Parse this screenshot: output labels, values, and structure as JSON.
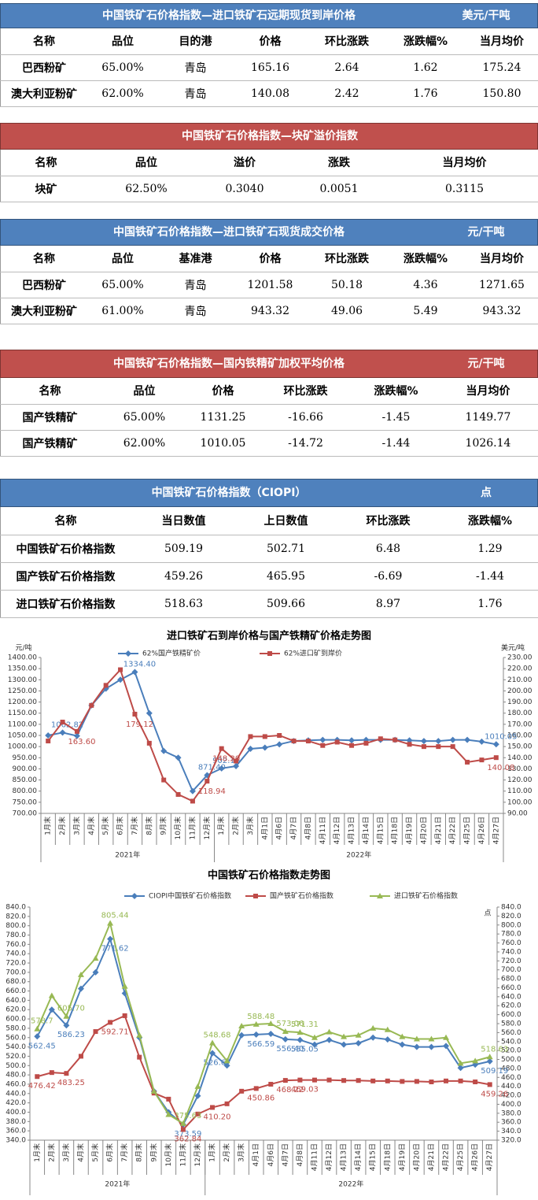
{
  "tables": [
    {
      "title": "中国铁矿石价格指数—进口铁矿石远期现货到岸价格",
      "unit": "美元/干吨",
      "header_color": "#4f81bd",
      "columns": [
        "名称",
        "品位",
        "目的港",
        "价格",
        "环比涨跌",
        "涨跌幅%",
        "当月均价"
      ],
      "rows": [
        [
          "巴西粉矿",
          "65.00%",
          "青岛",
          "165.16",
          "2.64",
          "1.62",
          "175.24"
        ],
        [
          "澳大利亚粉矿",
          "62.00%",
          "青岛",
          "140.08",
          "2.42",
          "1.76",
          "150.80"
        ]
      ]
    },
    {
      "title": "中国铁矿石价格指数—块矿溢价指数",
      "header_color": "#c0504d",
      "columns": [
        "名称",
        "品位",
        "溢价",
        "涨跌",
        "当月均价"
      ],
      "rows": [
        [
          "块矿",
          "62.50%",
          "0.3040",
          "0.0051",
          "0.3115"
        ]
      ]
    },
    {
      "title": "中国铁矿石价格指数—进口铁矿石现货成交价格",
      "unit": "元/干吨",
      "header_color": "#4f81bd",
      "columns": [
        "名称",
        "品位",
        "基准港",
        "价格",
        "环比涨跌",
        "涨跌幅%",
        "当月均价"
      ],
      "rows": [
        [
          "巴西粉矿",
          "65.00%",
          "青岛",
          "1201.58",
          "50.18",
          "4.36",
          "1271.65"
        ],
        [
          "澳大利亚粉矿",
          "61.00%",
          "青岛",
          "943.32",
          "49.06",
          "5.49",
          "943.32"
        ]
      ]
    },
    {
      "title": "中国铁矿石价格指数—国内铁精矿加权平均价格",
      "unit": "元/干吨",
      "header_color": "#c0504d",
      "columns": [
        "名称",
        "品位",
        "价格",
        "环比涨跌",
        "涨跌幅%",
        "当月均价"
      ],
      "rows": [
        [
          "国产铁精矿",
          "65.00%",
          "1131.25",
          "-16.66",
          "-1.45",
          "1149.77"
        ],
        [
          "国产铁精矿",
          "62.00%",
          "1010.05",
          "-14.72",
          "-1.44",
          "1026.14"
        ]
      ]
    },
    {
      "title": "中国铁矿石价格指数（CIOPI）",
      "unit": "点",
      "header_color": "#4f81bd",
      "columns": [
        "名称",
        "当日数值",
        "上日数值",
        "环比涨跌",
        "涨跌幅%"
      ],
      "rows": [
        [
          "中国铁矿石价格指数",
          "509.19",
          "502.71",
          "6.48",
          "1.29"
        ],
        [
          "国产铁矿石价格指数",
          "459.26",
          "465.95",
          "-6.69",
          "-1.44"
        ],
        [
          "进口铁矿石价格指数",
          "518.63",
          "509.66",
          "8.97",
          "1.76"
        ]
      ]
    }
  ],
  "chart_data": [
    {
      "type": "line",
      "title": "进口铁矿石到岸价格与国产铁精矿价格走势图",
      "y_label": "元/吨",
      "y2_label": "美元/吨",
      "legend": "top",
      "categories": [
        "1月末",
        "2月末",
        "3月末",
        "4月末",
        "5月末",
        "6月末",
        "7月末",
        "8月末",
        "9月末",
        "10月末",
        "11月末",
        "12月末",
        "1月末",
        "2月末",
        "3月末",
        "4月1日",
        "4月6日",
        "4月7日",
        "4月8日",
        "4月11日",
        "4月12日",
        "4月13日",
        "4月14日",
        "4月15日",
        "4月18日",
        "4月19日",
        "4月20日",
        "4月21日",
        "4月22日",
        "4月25日",
        "4月26日",
        "4月27日"
      ],
      "x_groups": [
        "2021年",
        "2022年"
      ],
      "series": [
        {
          "name": "62%国产铁精矿价",
          "color": "#4a7ebb",
          "marker": "diamond",
          "values": [
            1050,
            1062.82,
            1048,
            1185,
            1260,
            1300,
            1334.4,
            1150,
            980,
            950,
            800,
            871.4,
            902.16,
            912,
            990,
            995,
            1010,
            1025,
            1028,
            1030,
            1030,
            1028,
            1030,
            1030,
            1030,
            1028,
            1025,
            1025,
            1030,
            1030,
            1022,
            1010.05
          ],
          "value_labels": [
            null,
            "1062.82",
            null,
            null,
            null,
            null,
            "1334.40",
            null,
            null,
            null,
            null,
            "871.40",
            "902.16",
            null,
            null,
            null,
            null,
            null,
            null,
            null,
            null,
            null,
            null,
            null,
            null,
            null,
            null,
            null,
            null,
            null,
            null,
            "1010.05"
          ]
        },
        {
          "name": "62%进口矿到岸价",
          "color": "#be4b48",
          "marker": "square",
          "axis": "y2",
          "values": [
            155,
            172,
            163.6,
            187,
            205,
            219,
            179.12,
            153,
            120,
            107,
            101,
            118.94,
            148.2,
            137,
            159,
            159,
            160,
            155,
            155,
            151,
            154,
            151,
            153,
            157,
            156,
            152,
            150,
            150,
            150,
            136,
            138,
            140.08
          ],
          "value_labels": [
            null,
            null,
            "163.60",
            null,
            null,
            null,
            "179.12",
            null,
            null,
            null,
            null,
            "118.94",
            "148.20",
            null,
            null,
            null,
            null,
            null,
            null,
            null,
            null,
            null,
            null,
            null,
            null,
            null,
            null,
            null,
            null,
            null,
            null,
            "140.08"
          ]
        }
      ],
      "ylim": [
        700,
        1400
      ],
      "yticks": [
        {
          "value": 700,
          "label": "700.00"
        },
        {
          "value": 750,
          "label": "750.00"
        },
        {
          "value": 800,
          "label": "800.00"
        },
        {
          "value": 850,
          "label": "850.00"
        },
        {
          "value": 900,
          "label": "900.00"
        },
        {
          "value": 950,
          "label": "950.00"
        },
        {
          "value": 1000,
          "label": "1000.00"
        },
        {
          "value": 1050,
          "label": "1050.00"
        },
        {
          "value": 1100,
          "label": "1100.00"
        },
        {
          "value": 1150,
          "label": "1150.00"
        },
        {
          "value": 1200,
          "label": "1200.00"
        },
        {
          "value": 1250,
          "label": "1250.00"
        },
        {
          "value": 1300,
          "label": "1300.00"
        },
        {
          "value": 1350,
          "label": "1350.00"
        },
        {
          "value": 1400,
          "label": "1400.00"
        }
      ],
      "y2lim": [
        90,
        230
      ],
      "y2ticks": [
        {
          "value": 90,
          "label": "90.00"
        },
        {
          "value": 100,
          "label": "100.00"
        },
        {
          "value": 110,
          "label": "110.00"
        },
        {
          "value": 120,
          "label": "120.00"
        },
        {
          "value": 130,
          "label": "130.00"
        },
        {
          "value": 140,
          "label": "140.00"
        },
        {
          "value": 150,
          "label": "150.00"
        },
        {
          "value": 160,
          "label": "160.00"
        },
        {
          "value": 170,
          "label": "170.00"
        },
        {
          "value": 180,
          "label": "180.00"
        },
        {
          "value": 190,
          "label": "190.00"
        },
        {
          "value": 200,
          "label": "200.00"
        },
        {
          "value": 210,
          "label": "210.00"
        },
        {
          "value": 220,
          "label": "220.00"
        },
        {
          "value": 230,
          "label": "230.00"
        }
      ]
    },
    {
      "type": "line",
      "title": "中国铁矿石价格指数走势图",
      "y2_label": "点",
      "legend": "top",
      "categories": [
        "1月末",
        "2月末",
        "3月末",
        "4月末",
        "5月末",
        "6月末",
        "7月末",
        "8月末",
        "9月末",
        "10月末",
        "11月末",
        "12月末",
        "1月末",
        "2月末",
        "3月末",
        "4月1日",
        "4月6日",
        "4月7日",
        "4月8日",
        "4月11日",
        "4月12日",
        "4月13日",
        "4月14日",
        "4月15日",
        "4月18日",
        "4月19日",
        "4月20日",
        "4月21日",
        "4月22日",
        "4月25日",
        "4月26日",
        "4月27日"
      ],
      "x_groups": [
        "2021年",
        "2022年"
      ],
      "series": [
        {
          "name": "CIOPI中国铁矿石价格指数",
          "color": "#4a7ebb",
          "marker": "diamond",
          "values": [
            562.45,
            620,
            586.23,
            665,
            700,
            771.62,
            655,
            560,
            445,
            400,
            373.59,
            435,
            526.67,
            500,
            565,
            566.59,
            568,
            556.4,
            555.05,
            545,
            555,
            545,
            548,
            560,
            556,
            545,
            540,
            540,
            542,
            495,
            502,
            509.19
          ],
          "value_labels": [
            "562.45",
            null,
            "586.23",
            null,
            null,
            "771.62",
            null,
            null,
            null,
            null,
            "373.59",
            null,
            "526.67",
            null,
            null,
            "566.59",
            null,
            "556.40",
            "555.05",
            null,
            null,
            null,
            null,
            null,
            null,
            null,
            null,
            null,
            null,
            null,
            null,
            "509.19"
          ]
        },
        {
          "name": "国产铁矿石价格指数",
          "color": "#be4b48",
          "marker": "square",
          "values": [
            476.42,
            485,
            483.25,
            520,
            573,
            592.71,
            607,
            518,
            441,
            428,
            362.84,
            396,
            410.2,
            418,
            445,
            450.86,
            460,
            468.22,
            469.03,
            469,
            469,
            468,
            468,
            467,
            467,
            466,
            466,
            465,
            467,
            467,
            465,
            459.26
          ],
          "value_labels": [
            "476.42",
            null,
            "483.25",
            null,
            null,
            "592.71",
            null,
            null,
            null,
            null,
            "362.84",
            null,
            "410.20",
            null,
            null,
            "450.86",
            null,
            "468.22",
            "469.03",
            null,
            null,
            null,
            null,
            null,
            null,
            null,
            null,
            null,
            null,
            null,
            null,
            "459.26"
          ]
        },
        {
          "name": "进口铁矿石价格指数",
          "color": "#98b954",
          "marker": "triangle",
          "values": [
            578.7,
            650,
            605.7,
            695,
            730,
            805.44,
            670,
            565,
            445,
            395,
            375.63,
            455,
            548.68,
            510,
            585,
            588.48,
            590,
            573.06,
            571.31,
            560,
            572,
            562,
            565,
            580,
            577,
            562,
            557,
            557,
            560,
            505,
            510,
            518.63
          ],
          "value_labels": [
            "578.7",
            null,
            "605.70",
            null,
            null,
            "805.44",
            null,
            null,
            null,
            null,
            "375.63",
            null,
            "548.68",
            null,
            null,
            "588.48",
            null,
            "573.06",
            "571.31",
            null,
            null,
            null,
            null,
            null,
            null,
            null,
            null,
            null,
            null,
            null,
            null,
            "518.63"
          ]
        }
      ],
      "ylim": [
        340,
        840
      ],
      "yticks": [
        {
          "value": 340,
          "label": "340.0"
        },
        {
          "value": 360,
          "label": "360.0"
        },
        {
          "value": 380,
          "label": "380.0"
        },
        {
          "value": 400,
          "label": "400.0"
        },
        {
          "value": 420,
          "label": "420.0"
        },
        {
          "value": 440,
          "label": "440.0"
        },
        {
          "value": 460,
          "label": "460.0"
        },
        {
          "value": 480,
          "label": "480.0"
        },
        {
          "value": 500,
          "label": "500.0"
        },
        {
          "value": 520,
          "label": "520.0"
        },
        {
          "value": 540,
          "label": "540.0"
        },
        {
          "value": 560,
          "label": "560.0"
        },
        {
          "value": 580,
          "label": "580.0"
        },
        {
          "value": 600,
          "label": "600.0"
        },
        {
          "value": 620,
          "label": "620.0"
        },
        {
          "value": 640,
          "label": "640.0"
        },
        {
          "value": 660,
          "label": "660.0"
        },
        {
          "value": 680,
          "label": "680.0"
        },
        {
          "value": 700,
          "label": "700.0"
        },
        {
          "value": 720,
          "label": "720.0"
        },
        {
          "value": 740,
          "label": "740.0"
        },
        {
          "value": 760,
          "label": "760.0"
        },
        {
          "value": 780,
          "label": "780.0"
        },
        {
          "value": 800,
          "label": "800.0"
        },
        {
          "value": 820,
          "label": "820.0"
        },
        {
          "value": 840,
          "label": "840.0"
        }
      ],
      "y2lim": [
        320,
        840
      ],
      "y2ticks": [
        {
          "value": 320,
          "label": "320.0"
        },
        {
          "value": 340,
          "label": "340.0"
        },
        {
          "value": 360,
          "label": "360.0"
        },
        {
          "value": 380,
          "label": "380.0"
        },
        {
          "value": 400,
          "label": "400.0"
        },
        {
          "value": 420,
          "label": "420.0"
        },
        {
          "value": 440,
          "label": "440.0"
        },
        {
          "value": 460,
          "label": "460.0"
        },
        {
          "value": 480,
          "label": "480.0"
        },
        {
          "value": 500,
          "label": "500.0"
        },
        {
          "value": 520,
          "label": "520.0"
        },
        {
          "value": 540,
          "label": "540.0"
        },
        {
          "value": 560,
          "label": "560.0"
        },
        {
          "value": 580,
          "label": "580.0"
        },
        {
          "value": 600,
          "label": "600.0"
        },
        {
          "value": 620,
          "label": "620.0"
        },
        {
          "value": 640,
          "label": "640.0"
        },
        {
          "value": 660,
          "label": "660.0"
        },
        {
          "value": 680,
          "label": "680.0"
        },
        {
          "value": 700,
          "label": "700.0"
        },
        {
          "value": 720,
          "label": "720.0"
        },
        {
          "value": 740,
          "label": "740.0"
        },
        {
          "value": 760,
          "label": "760.0"
        },
        {
          "value": 780,
          "label": "780.0"
        },
        {
          "value": 800,
          "label": "800.0"
        },
        {
          "value": 820,
          "label": "820.0"
        },
        {
          "value": 840,
          "label": "840.0"
        }
      ]
    }
  ]
}
